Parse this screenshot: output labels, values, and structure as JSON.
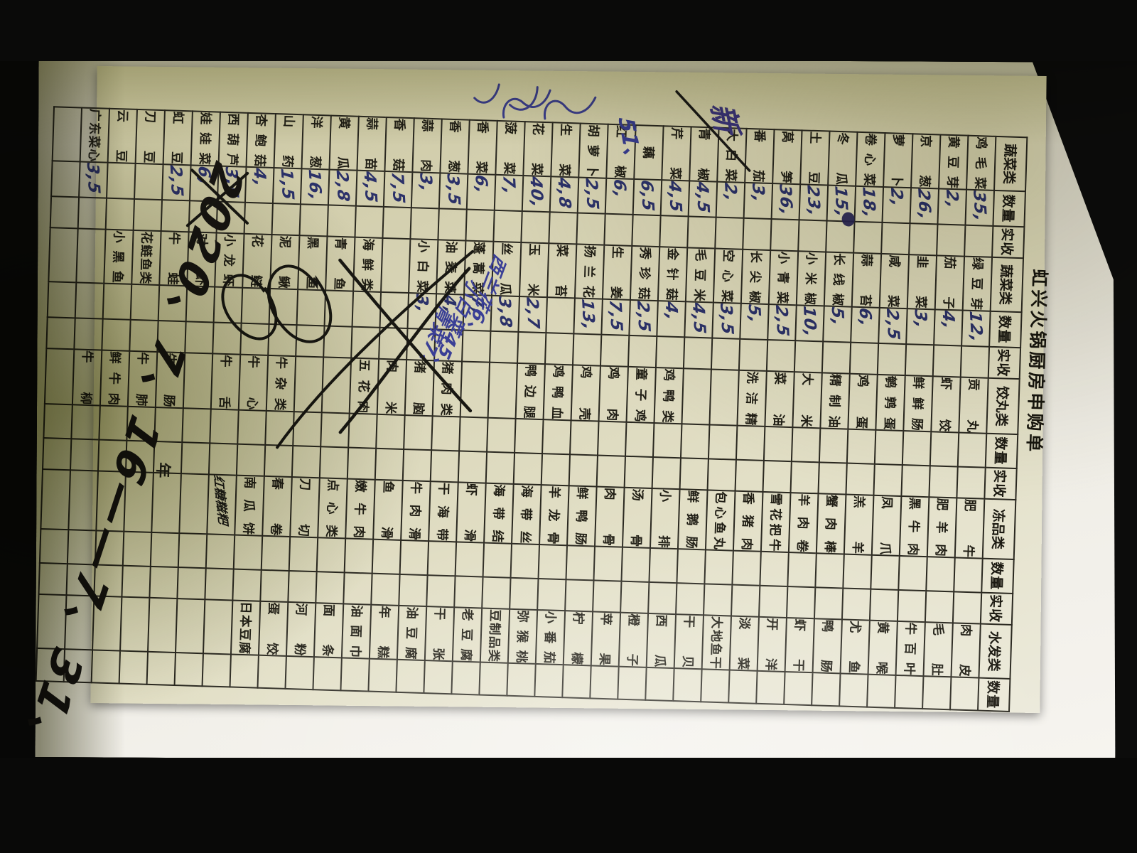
{
  "scene": {
    "background_color": "#0c0c0b",
    "backing_paper_color": "#efede6",
    "form_paper_color": "#d7d3b4",
    "ink_blue": "#2b3169",
    "ink_black": "#1c1a12"
  },
  "document": {
    "title": "虹兴火锅厨房申购单",
    "table": {
      "headers": [
        "蔬菜类",
        "数量",
        "实收",
        "蔬菜类",
        "数量",
        "实收",
        "饺丸类",
        "数量",
        "实收",
        "冻品类",
        "数量",
        "实收",
        "水发类",
        "数量"
      ],
      "rows": [
        [
          "鸡毛菜",
          "35,",
          "",
          "绿豆芽",
          "12,",
          "",
          "贡丸",
          "",
          "",
          "肥牛",
          "",
          "",
          "肉皮",
          ""
        ],
        [
          "黄豆芽",
          "2,",
          "",
          "茄子",
          "4,",
          "",
          "虾饺",
          "",
          "",
          "肥羊肉",
          "",
          "",
          "毛肚",
          ""
        ],
        [
          "京葱",
          "26,",
          "",
          "韭菜",
          "3,",
          "",
          "鲜鲜肠",
          "",
          "",
          "黑牛肉",
          "",
          "",
          "牛百叶",
          ""
        ],
        [
          "萝卜",
          "2,",
          "",
          "咸菜",
          "2,5",
          "",
          "鹌鹑蛋",
          "",
          "",
          "凤爪",
          "",
          "",
          "黄喉",
          ""
        ],
        [
          "卷心菜",
          "18,",
          "",
          "蒜苔",
          "6,",
          "",
          "鸡蛋",
          "",
          "",
          "羔羊",
          "",
          "",
          "尤鱼",
          ""
        ],
        [
          "冬瓜",
          "15,",
          "",
          "长线椒",
          "5,",
          "",
          "精制油",
          "",
          "",
          "蟹肉棒",
          "",
          "",
          "鸭肠",
          ""
        ],
        [
          "土豆",
          "23,",
          "",
          "小米椒",
          "10,",
          "",
          "大米",
          "",
          "",
          "羊肉卷",
          "",
          "",
          "虾干",
          ""
        ],
        [
          "莴笋",
          "36,",
          "",
          "小青菜",
          "2,5",
          "",
          "菜油",
          "",
          "",
          "雪花把牛",
          "",
          "",
          "开洋",
          ""
        ],
        [
          "番茄",
          "3,",
          "",
          "长尖椒",
          "5,",
          "",
          "洗洁精",
          "",
          "",
          "香猪肉",
          "",
          "",
          "淡菜",
          ""
        ],
        [
          "大白菜",
          "2,",
          "",
          "空心菜",
          "3,5",
          "",
          "",
          "",
          "",
          "包心鱼丸",
          "",
          "",
          "大地鱼干",
          ""
        ],
        [
          "青椒",
          "4,5",
          "",
          "毛豆米",
          "4,5",
          "",
          "",
          "",
          "",
          "鲜鹅肠",
          "",
          "",
          "干贝",
          ""
        ],
        [
          "芹菜",
          "4,5",
          "",
          "金针菇",
          "4,",
          "",
          "鸡鸭类",
          "",
          "",
          "小排",
          "",
          "",
          "西瓜",
          ""
        ],
        [
          "藕",
          "6,5",
          "",
          "秀珍菇",
          "2,5",
          "",
          "童子鸡",
          "",
          "",
          "汤骨",
          "",
          "",
          "橙子",
          ""
        ],
        [
          "红椒",
          "6,",
          "",
          "生姜",
          "7,5",
          "",
          "鸡肉",
          "",
          "",
          "肉骨",
          "",
          "",
          "苹果",
          ""
        ],
        [
          "胡萝卜",
          "2,5",
          "",
          "扬兰花",
          "13,",
          "",
          "鸡壳",
          "",
          "",
          "鲜鸭肠",
          "",
          "",
          "柠檬",
          ""
        ],
        [
          "生菜",
          "4,8",
          "",
          "菜苔",
          "",
          "",
          "鸡鸭血",
          "",
          "",
          "羊龙骨",
          "",
          "",
          "小番茄",
          ""
        ],
        [
          "花菜",
          "40,",
          "",
          "玉米",
          "2,7",
          "",
          "鸭边腿",
          "",
          "",
          "海带丝",
          "",
          "",
          "弥猴桃",
          ""
        ],
        [
          "菠菜",
          "7,",
          "",
          "丝瓜",
          "3,8",
          "",
          "",
          "",
          "",
          "海带结",
          "",
          "",
          "豆制品类",
          ""
        ],
        [
          "香菜",
          "6,",
          "",
          "蓬蒿菜",
          "7,",
          "",
          "",
          "",
          "",
          "虾滑",
          "",
          "",
          "老豆腐",
          ""
        ],
        [
          "香葱",
          "3,5",
          "",
          "油麦菜",
          "4,",
          "",
          "猪肉类",
          "",
          "",
          "干海带",
          "",
          "",
          "干张",
          ""
        ],
        [
          "蒜肉",
          "3,",
          "",
          "小白菜",
          "3,",
          "",
          "猪脑",
          "",
          "",
          "牛肉滑",
          "",
          "",
          "油豆腐",
          ""
        ],
        [
          "香菇",
          "7,5",
          "",
          "",
          "",
          "",
          "肉米",
          "",
          "",
          "鱼滑",
          "",
          "",
          "年糕",
          ""
        ],
        [
          "蒜苗",
          "4,5",
          "",
          "海鲜类",
          "",
          "",
          "五花肉",
          "",
          "",
          "嫩牛肉",
          "",
          "",
          "油面巾",
          ""
        ],
        [
          "黄瓜",
          "2,8",
          "",
          "青鱼",
          "",
          "",
          "",
          "",
          "",
          "点心类",
          "",
          "",
          "面条",
          ""
        ],
        [
          "洋葱",
          "16,",
          "",
          "黑鱼",
          "",
          "",
          "",
          "",
          "",
          "刀切",
          "",
          "",
          "河粉",
          ""
        ],
        [
          "山药",
          "1,5",
          "",
          "泥鳅",
          "",
          "",
          "牛杂类",
          "",
          "",
          "春卷",
          "",
          "",
          "蛋饺",
          ""
        ],
        [
          "杏鲍菇",
          "4,",
          "",
          "花鲢",
          "",
          "",
          "牛心",
          "",
          "",
          "南瓜饼",
          "",
          "",
          "日本豆腐",
          ""
        ],
        [
          "西葫芦",
          "3,5",
          "",
          "小龙虾",
          "",
          "",
          "牛舌",
          "",
          "",
          "红糖糍粑",
          "",
          "",
          "",
          ""
        ],
        [
          "娃娃菜",
          "6,",
          "",
          "对虾",
          "",
          "",
          "",
          "",
          "",
          "",
          "",
          "",
          "",
          ""
        ],
        [
          "虹豆",
          "2,5",
          "",
          "牛蛙",
          "",
          "",
          "牛肠",
          "",
          "",
          "",
          "",
          "",
          "",
          ""
        ],
        [
          "刀豆",
          "",
          "",
          "花鲢鱼类",
          "",
          "",
          "牛肺",
          "",
          "",
          "",
          "",
          "",
          "",
          ""
        ],
        [
          "云豆",
          "",
          "",
          "小黑鱼",
          "",
          "",
          "鲜牛肉",
          "",
          "",
          "",
          "",
          "",
          "",
          ""
        ],
        [
          "广东菜心",
          "3,5",
          "",
          "",
          "",
          "",
          "牛柳",
          "",
          "",
          "",
          "",
          "",
          "",
          ""
        ],
        [
          "",
          "",
          "",
          "",
          "",
          "",
          "",
          "",
          "",
          "",
          "",
          "",
          "",
          ""
        ]
      ]
    },
    "handwritten": {
      "date_note": "2020、7、16——7、31、",
      "year_label": "年",
      "margin_note_black": "新",
      "margin_note_number": "51、",
      "blue_annotations": [
        "西兰花6、",
        "小白菜45、",
        "青菜7、"
      ]
    }
  }
}
